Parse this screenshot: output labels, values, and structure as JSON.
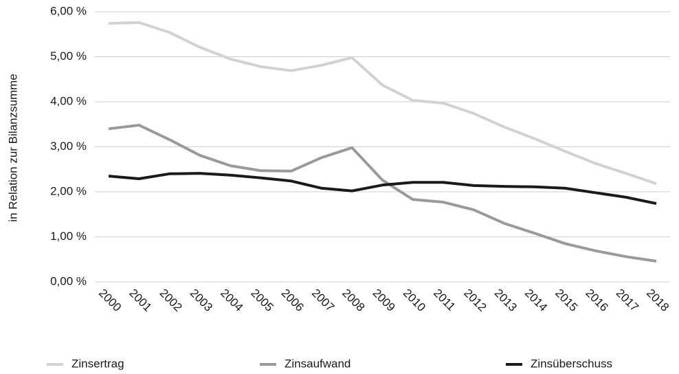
{
  "chart_data": {
    "type": "line",
    "y_label": "in Relation zur Bilanzsumme",
    "categories": [
      "2000",
      "2001",
      "2002",
      "2003",
      "2004",
      "2005",
      "2006",
      "2007",
      "2008",
      "2009",
      "2010",
      "2011",
      "2012",
      "2013",
      "2014",
      "2015",
      "2016",
      "2017",
      "2018"
    ],
    "series": [
      {
        "name": "Zinsertrag",
        "color": "#d2d2d2",
        "values": [
          5.74,
          5.76,
          5.54,
          5.21,
          4.95,
          4.78,
          4.69,
          4.81,
          4.98,
          4.37,
          4.03,
          3.97,
          3.74,
          3.44,
          3.18,
          2.9,
          2.63,
          2.41,
          2.18
        ]
      },
      {
        "name": "Zinsaufwand",
        "color": "#9a9a9a",
        "values": [
          3.4,
          3.48,
          3.16,
          2.81,
          2.58,
          2.47,
          2.46,
          2.76,
          2.98,
          2.26,
          1.83,
          1.77,
          1.6,
          1.3,
          1.08,
          0.85,
          0.69,
          0.56,
          0.46
        ]
      },
      {
        "name": "Zinsüberschuss",
        "color": "#1a1a1a",
        "values": [
          2.35,
          2.29,
          2.4,
          2.41,
          2.37,
          2.31,
          2.24,
          2.08,
          2.02,
          2.15,
          2.21,
          2.21,
          2.14,
          2.12,
          2.11,
          2.08,
          1.98,
          1.88,
          1.74
        ]
      }
    ],
    "ylim": [
      0,
      6
    ],
    "yticks": [
      {
        "value": 0,
        "label": "0,00 %"
      },
      {
        "value": 1,
        "label": "1,00 %"
      },
      {
        "value": 2,
        "label": "2,00 %"
      },
      {
        "value": 3,
        "label": "3,00 %"
      },
      {
        "value": 4,
        "label": "4,00 %"
      },
      {
        "value": 5,
        "label": "5,00 %"
      },
      {
        "value": 6,
        "label": "6,00 %"
      }
    ],
    "grid": true
  }
}
